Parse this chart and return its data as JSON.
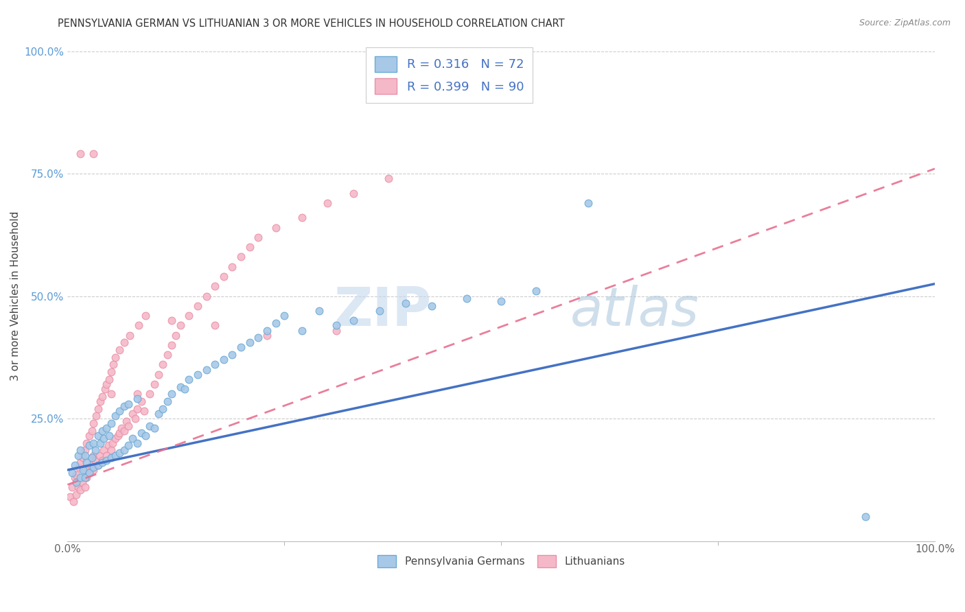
{
  "title": "PENNSYLVANIA GERMAN VS LITHUANIAN 3 OR MORE VEHICLES IN HOUSEHOLD CORRELATION CHART",
  "source": "Source: ZipAtlas.com",
  "ylabel": "3 or more Vehicles in Household",
  "xlim": [
    0.0,
    1.0
  ],
  "ylim": [
    0.0,
    1.0
  ],
  "legend_labels": [
    "Pennsylvania Germans",
    "Lithuanians"
  ],
  "legend_r": [
    "R = 0.316",
    "N = 72"
  ],
  "legend_n": [
    "R = 0.399",
    "N = 90"
  ],
  "blue_color": "#a8c8e8",
  "blue_edge_color": "#6aaad4",
  "pink_color": "#f5b8c8",
  "pink_edge_color": "#e890a8",
  "blue_line_color": "#4472c4",
  "pink_line_color": "#e87090",
  "watermark_color": "#d8e8f4",
  "blue_scatter_x": [
    0.005,
    0.008,
    0.01,
    0.012,
    0.015,
    0.015,
    0.018,
    0.02,
    0.02,
    0.022,
    0.025,
    0.025,
    0.028,
    0.03,
    0.03,
    0.032,
    0.035,
    0.035,
    0.038,
    0.04,
    0.04,
    0.042,
    0.045,
    0.045,
    0.048,
    0.05,
    0.05,
    0.055,
    0.055,
    0.06,
    0.06,
    0.065,
    0.065,
    0.07,
    0.07,
    0.075,
    0.08,
    0.08,
    0.085,
    0.09,
    0.095,
    0.1,
    0.105,
    0.11,
    0.115,
    0.12,
    0.13,
    0.135,
    0.14,
    0.15,
    0.16,
    0.17,
    0.18,
    0.19,
    0.2,
    0.21,
    0.22,
    0.23,
    0.24,
    0.25,
    0.27,
    0.29,
    0.31,
    0.33,
    0.36,
    0.39,
    0.42,
    0.46,
    0.5,
    0.54,
    0.6,
    0.92
  ],
  "blue_scatter_y": [
    0.14,
    0.155,
    0.12,
    0.175,
    0.13,
    0.185,
    0.145,
    0.13,
    0.175,
    0.16,
    0.14,
    0.195,
    0.17,
    0.15,
    0.2,
    0.185,
    0.155,
    0.215,
    0.2,
    0.16,
    0.225,
    0.21,
    0.165,
    0.23,
    0.215,
    0.17,
    0.24,
    0.175,
    0.255,
    0.18,
    0.265,
    0.185,
    0.275,
    0.195,
    0.28,
    0.21,
    0.2,
    0.29,
    0.22,
    0.215,
    0.235,
    0.23,
    0.26,
    0.27,
    0.285,
    0.3,
    0.315,
    0.31,
    0.33,
    0.34,
    0.35,
    0.36,
    0.37,
    0.38,
    0.395,
    0.405,
    0.415,
    0.43,
    0.445,
    0.46,
    0.43,
    0.47,
    0.44,
    0.45,
    0.47,
    0.485,
    0.48,
    0.495,
    0.49,
    0.51,
    0.69,
    0.05
  ],
  "pink_scatter_x": [
    0.003,
    0.005,
    0.007,
    0.008,
    0.01,
    0.01,
    0.012,
    0.013,
    0.015,
    0.015,
    0.017,
    0.018,
    0.02,
    0.02,
    0.02,
    0.022,
    0.022,
    0.025,
    0.025,
    0.027,
    0.028,
    0.03,
    0.03,
    0.03,
    0.032,
    0.033,
    0.035,
    0.035,
    0.037,
    0.038,
    0.04,
    0.04,
    0.042,
    0.043,
    0.045,
    0.045,
    0.047,
    0.048,
    0.05,
    0.05,
    0.052,
    0.053,
    0.055,
    0.055,
    0.058,
    0.06,
    0.06,
    0.062,
    0.065,
    0.065,
    0.068,
    0.07,
    0.072,
    0.075,
    0.078,
    0.08,
    0.082,
    0.085,
    0.088,
    0.09,
    0.095,
    0.1,
    0.105,
    0.11,
    0.115,
    0.12,
    0.125,
    0.13,
    0.14,
    0.15,
    0.16,
    0.17,
    0.18,
    0.19,
    0.2,
    0.21,
    0.22,
    0.24,
    0.27,
    0.3,
    0.33,
    0.37,
    0.31,
    0.23,
    0.17,
    0.12,
    0.08,
    0.05,
    0.03,
    0.015
  ],
  "pink_scatter_y": [
    0.09,
    0.11,
    0.08,
    0.13,
    0.095,
    0.135,
    0.11,
    0.15,
    0.105,
    0.16,
    0.12,
    0.17,
    0.11,
    0.145,
    0.185,
    0.13,
    0.2,
    0.14,
    0.215,
    0.155,
    0.225,
    0.145,
    0.175,
    0.24,
    0.165,
    0.255,
    0.155,
    0.27,
    0.175,
    0.285,
    0.165,
    0.295,
    0.185,
    0.31,
    0.175,
    0.32,
    0.195,
    0.33,
    0.185,
    0.345,
    0.2,
    0.36,
    0.21,
    0.375,
    0.215,
    0.22,
    0.39,
    0.23,
    0.225,
    0.405,
    0.245,
    0.235,
    0.42,
    0.26,
    0.25,
    0.27,
    0.44,
    0.285,
    0.265,
    0.46,
    0.3,
    0.32,
    0.34,
    0.36,
    0.38,
    0.4,
    0.42,
    0.44,
    0.46,
    0.48,
    0.5,
    0.52,
    0.54,
    0.56,
    0.58,
    0.6,
    0.62,
    0.64,
    0.66,
    0.69,
    0.71,
    0.74,
    0.43,
    0.42,
    0.44,
    0.45,
    0.3,
    0.3,
    0.79,
    0.79
  ],
  "blue_line_x0": 0.0,
  "blue_line_y0": 0.145,
  "blue_line_x1": 1.0,
  "blue_line_y1": 0.525,
  "pink_line_x0": 0.0,
  "pink_line_y0": 0.115,
  "pink_line_x1": 1.0,
  "pink_line_y1": 0.76
}
